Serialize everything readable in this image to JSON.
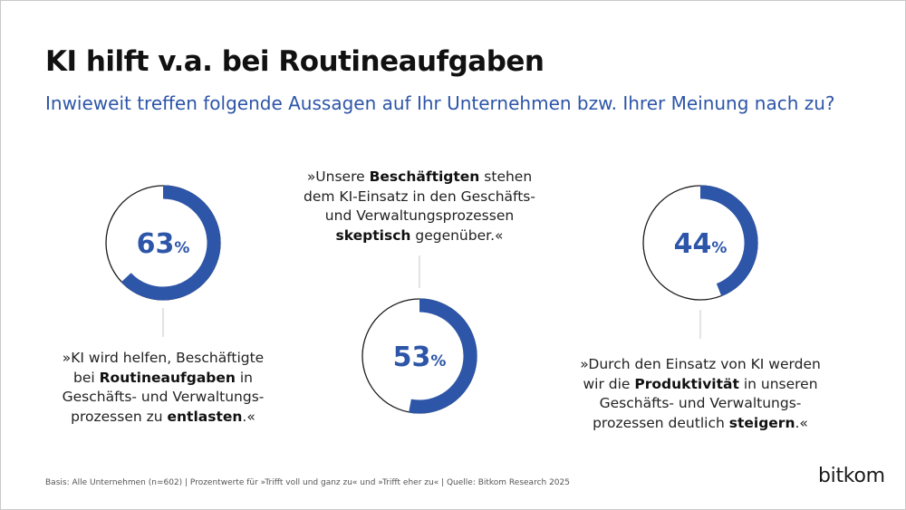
{
  "header": {
    "title": "KI hilft v.a. bei Routineaufgaben",
    "subtitle": "Inwieweit treffen folgende Aussagen auf Ihr Unternehmen bzw. Ihrer Meinung nach zu?"
  },
  "colors": {
    "accent": "#2d55a8",
    "ring": "#1a1a1a",
    "connector": "#c8c8c8"
  },
  "chart_data": {
    "type": "pie",
    "items": [
      {
        "value": 63,
        "value_label": "63",
        "unit": "%",
        "statement": [
          {
            "text": "»KI wird helfen, Beschäftigte",
            "bold": false
          },
          {
            "text": "bei ",
            "bold": false
          },
          {
            "text": "Routineaufgaben",
            "bold": true
          },
          {
            "text": " in",
            "bold": false
          },
          {
            "text": "Geschäfts- und Verwaltungs-",
            "bold": false
          },
          {
            "text": "prozessen zu ",
            "bold": false
          },
          {
            "text": "entlasten",
            "bold": true
          },
          {
            "text": ".«",
            "bold": false
          }
        ]
      },
      {
        "value": 53,
        "value_label": "53",
        "unit": "%",
        "statement": [
          {
            "text": "»Unsere ",
            "bold": false
          },
          {
            "text": "Beschäftigten",
            "bold": true
          },
          {
            "text": " stehen",
            "bold": false
          },
          {
            "text": "dem KI-Einsatz in den Geschäfts-",
            "bold": false
          },
          {
            "text": "und Verwaltungsprozessen",
            "bold": false
          },
          {
            "text": "skeptisch",
            "bold": true
          },
          {
            "text": " gegenüber.«",
            "bold": false
          }
        ]
      },
      {
        "value": 44,
        "value_label": "44",
        "unit": "%",
        "statement": [
          {
            "text": "»Durch den Einsatz von KI werden",
            "bold": false
          },
          {
            "text": "wir die ",
            "bold": false
          },
          {
            "text": "Produktivität",
            "bold": true
          },
          {
            "text": " in unseren",
            "bold": false
          },
          {
            "text": "Geschäfts- und Verwaltungs-",
            "bold": false
          },
          {
            "text": "prozessen deutlich ",
            "bold": false
          },
          {
            "text": "steigern",
            "bold": true
          },
          {
            "text": ".«",
            "bold": false
          }
        ]
      }
    ]
  },
  "footer": {
    "source": "Basis: Alle Unternehmen (n=602) | Prozentwerte für »Trifft voll und ganz zu« und »Trifft eher zu« | Quelle: Bitkom Research 2025"
  },
  "brand": {
    "logo_text": "bitkom"
  }
}
